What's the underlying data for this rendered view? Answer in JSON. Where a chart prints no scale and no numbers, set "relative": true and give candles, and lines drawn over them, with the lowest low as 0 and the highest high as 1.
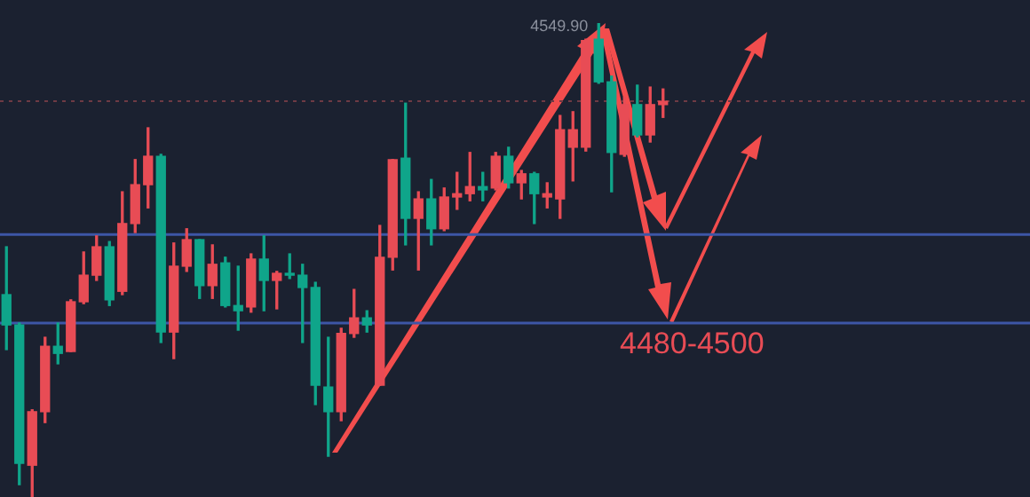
{
  "chart_data": {
    "type": "candlestick",
    "relative": true,
    "categories": [
      null,
      null,
      null,
      null,
      null,
      null,
      null,
      null,
      null,
      null,
      null,
      null,
      null,
      null,
      null,
      null,
      null,
      null,
      null,
      null,
      null,
      null,
      null,
      null,
      null,
      null,
      null,
      null,
      null,
      null,
      null,
      null,
      null,
      null,
      null,
      null,
      null,
      null,
      null,
      null,
      null,
      null,
      null,
      null,
      null,
      null,
      null,
      null,
      null,
      null,
      null,
      null,
      null,
      null,
      null,
      null,
      null,
      null,
      null,
      null,
      null,
      null,
      null,
      null,
      null,
      null,
      null,
      null,
      null,
      null,
      null,
      null,
      null,
      null,
      null,
      null,
      null,
      null,
      null,
      null
    ],
    "ohlc": [
      [
        0.427,
        0.528,
        0.311,
        0.363
      ],
      [
        0.363,
        0.367,
        0.026,
        0.071
      ],
      [
        0.067,
        0.184,
        0,
        0.18
      ],
      [
        0.18,
        0.337,
        0.157,
        0.318
      ],
      [
        0.318,
        0.367,
        0.281,
        0.303
      ],
      [
        0.307,
        0.416,
        0.307,
        0.412
      ],
      [
        0.412,
        0.517,
        0.408,
        0.468
      ],
      [
        0.468,
        0.551,
        0.457,
        0.528
      ],
      [
        0.528,
        0.539,
        0.404,
        0.416
      ],
      [
        0.434,
        0.644,
        0.427,
        0.577
      ],
      [
        0.577,
        0.712,
        0.558,
        0.659
      ],
      [
        0.659,
        0.779,
        0.61,
        0.719
      ],
      [
        0.719,
        0.723,
        0.326,
        0.348
      ],
      [
        0.348,
        0.536,
        0.292,
        0.487
      ],
      [
        0.487,
        0.566,
        0.476,
        0.543
      ],
      [
        0.543,
        0.543,
        0.419,
        0.446
      ],
      [
        0.446,
        0.532,
        0.419,
        0.491
      ],
      [
        0.494,
        0.506,
        0.401,
        0.404
      ],
      [
        0.404,
        0.487,
        0.352,
        0.393
      ],
      [
        0.401,
        0.513,
        0.39,
        0.502
      ],
      [
        0.502,
        0.551,
        0.393,
        0.457
      ],
      [
        0.457,
        0.476,
        0.397,
        0.472
      ],
      [
        0.472,
        0.513,
        0.461,
        0.468
      ],
      [
        0.468,
        0.491,
        0.326,
        0.442
      ],
      [
        0.442,
        0.453,
        0.195,
        0.236
      ],
      [
        0.232,
        0.337,
        0.086,
        0.18
      ],
      [
        0.18,
        0.356,
        0.161,
        0.345
      ],
      [
        0.345,
        0.438,
        0.337,
        0.378
      ],
      [
        0.378,
        0.393,
        0.348,
        0.363
      ],
      [
        0.236,
        0.573,
        0.236,
        0.506
      ],
      [
        0.506,
        0.712,
        0.479,
        0.712
      ],
      [
        0.715,
        0.831,
        0.532,
        0.588
      ],
      [
        0.588,
        0.644,
        0.479,
        0.629
      ],
      [
        0.629,
        0.67,
        0.532,
        0.566
      ],
      [
        0.566,
        0.652,
        0.562,
        0.633
      ],
      [
        0.633,
        0.685,
        0.607,
        0.64
      ],
      [
        0.64,
        0.727,
        0.625,
        0.655
      ],
      [
        0.655,
        0.685,
        0.625,
        0.648
      ],
      [
        0.652,
        0.727,
        0.648,
        0.719
      ],
      [
        0.719,
        0.738,
        0.652,
        0.663
      ],
      [
        0.663,
        0.689,
        0.629,
        0.682
      ],
      [
        0.682,
        0.685,
        0.577,
        0.64
      ],
      [
        0.633,
        0.663,
        0.61,
        0.64
      ],
      [
        0.629,
        0.805,
        0.588,
        0.775
      ],
      [
        0.738,
        0.813,
        0.667,
        0.775
      ],
      [
        0.738,
        0.966,
        0.73,
        0.963
      ],
      [
        0.966,
        1,
        0.873,
        0.876
      ],
      [
        0.876,
        0.888,
        0.644,
        0.727
      ],
      [
        0.723,
        0.843,
        0.719,
        0.828
      ],
      [
        0.828,
        0.869,
        0.76,
        0.764
      ],
      [
        0.764,
        0.865,
        0.749,
        0.828
      ],
      [
        0.828,
        0.861,
        0.801,
        0.835
      ],
      null,
      null,
      null,
      null,
      null,
      null,
      null,
      null,
      null,
      null,
      null,
      null,
      null,
      null,
      null,
      null,
      null,
      null,
      null,
      null,
      null,
      null,
      null,
      null,
      null,
      null,
      null,
      null
    ],
    "colors": [
      "#0fa58a",
      "#0fa58a",
      "#e84c55",
      "#e84c55",
      "#0fa58a",
      "#e84c55",
      "#e84c55",
      "#e84c55",
      "#0fa58a",
      "#e84c55",
      "#e84c55",
      "#e84c55",
      "#0fa58a",
      "#e84c55",
      "#e84c55",
      "#0fa58a",
      "#e84c55",
      "#0fa58a",
      "#0fa58a",
      "#e84c55",
      "#0fa58a",
      "#e84c55",
      "#0fa58a",
      "#0fa58a",
      "#0fa58a",
      "#0fa58a",
      "#e84c55",
      "#e84c55",
      "#0fa58a",
      "#e84c55",
      "#e84c55",
      "#0fa58a",
      "#e84c55",
      "#0fa58a",
      "#e84c55",
      "#e84c55",
      "#e84c55",
      "#0fa58a",
      "#e84c55",
      "#0fa58a",
      "#e84c55",
      "#0fa58a",
      "#e84c55",
      "#e84c55",
      "#e84c55",
      "#e84c55",
      "#0fa58a",
      "#0fa58a",
      "#e84c55",
      "#0fa58a",
      "#e84c55",
      "#e84c55",
      null,
      null,
      null,
      null,
      null,
      null,
      null,
      null,
      null,
      null,
      null,
      null,
      null,
      null,
      null,
      null,
      null,
      null,
      null,
      null,
      null,
      null,
      null,
      null,
      null,
      null,
      null,
      null
    ],
    "ref_lines": [
      {
        "axis": "y",
        "value": 0.554,
        "color": "#3d56a6"
      },
      {
        "axis": "y",
        "value": 0.367,
        "color": "#3d56a6"
      },
      {
        "axis": "y",
        "value": 0.835,
        "color": "#6e3a44",
        "line_style": "dotted"
      }
    ],
    "annotations": [
      "4549.90",
      "4480-4500"
    ]
  }
}
